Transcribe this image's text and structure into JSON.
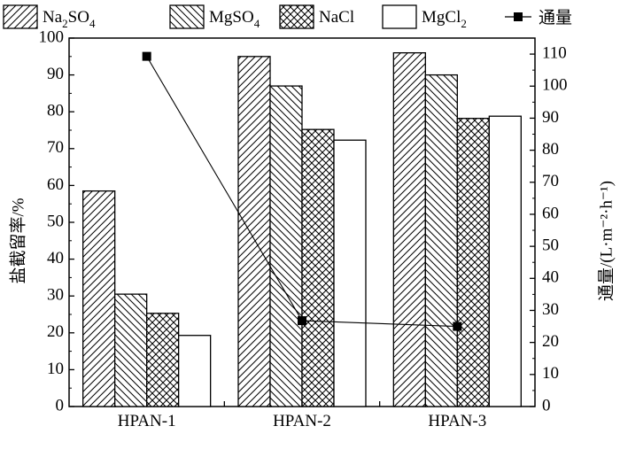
{
  "chart_data": {
    "type": "bar",
    "categories": [
      "HPAN-1",
      "HPAN-2",
      "HPAN-3"
    ],
    "series": [
      {
        "name": "Na2SO4",
        "display_base": "Na",
        "display_sub1": "2",
        "display_mid": "SO",
        "display_sub2": "4",
        "pattern": "diag-right",
        "values": [
          58.5,
          95.0,
          96.0
        ]
      },
      {
        "name": "MgSO4",
        "display_base": "MgSO",
        "display_sub1": "4",
        "display_mid": "",
        "display_sub2": "",
        "pattern": "diag-left",
        "values": [
          30.5,
          87.0,
          90.0
        ]
      },
      {
        "name": "NaCl",
        "display_base": "NaCl",
        "display_sub1": "",
        "display_mid": "",
        "display_sub2": "",
        "pattern": "cross",
        "values": [
          25.3,
          75.2,
          78.2
        ]
      },
      {
        "name": "MgCl2",
        "display_base": "MgCl",
        "display_sub1": "2",
        "display_mid": "",
        "display_sub2": "",
        "pattern": "none",
        "values": [
          19.3,
          72.3,
          78.8
        ]
      }
    ],
    "line_series": {
      "name": "通量",
      "axis": "right",
      "values": [
        109.3,
        26.8,
        25.0
      ]
    },
    "ylabel_left": "盐截留率/%",
    "ylabel_right": "通量/(L·m⁻²·h⁻¹)",
    "ylim_left": [
      0,
      100
    ],
    "yticks_left": [
      0,
      10,
      20,
      30,
      40,
      50,
      60,
      70,
      80,
      90,
      100
    ],
    "ylim_right": [
      0,
      115
    ],
    "yticks_right": [
      0,
      10,
      20,
      30,
      40,
      50,
      60,
      70,
      80,
      90,
      100,
      110
    ],
    "grid": false,
    "legend_placement": "top"
  }
}
